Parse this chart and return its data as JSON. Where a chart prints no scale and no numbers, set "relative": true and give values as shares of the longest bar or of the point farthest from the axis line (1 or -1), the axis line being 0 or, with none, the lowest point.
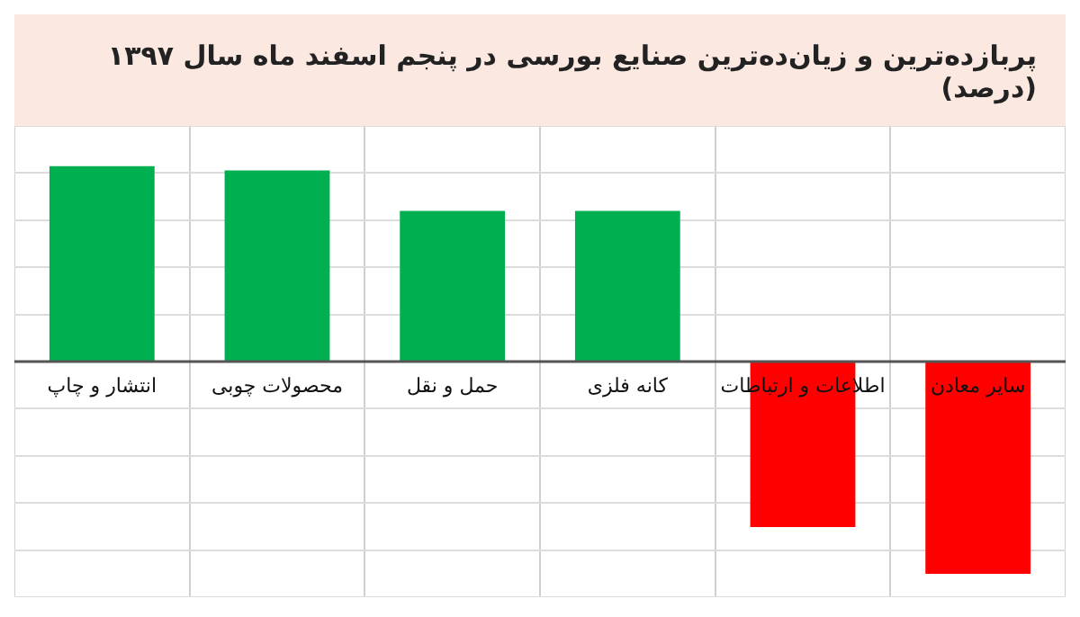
{
  "chart_data": {
    "type": "bar",
    "title": "پربازده‌ترین و زیان‌ده‌ترین صنایع بورسی در پنجم اسفند ماه سال ۱۳۹۷ (درصد)",
    "categories": [
      "انتشار و چاپ",
      "محصولات چوبی",
      "حمل و نقل",
      "کانه فلزی",
      "اطلاعات و ارتباطات",
      "سایر معادن"
    ],
    "values": [
      0.92,
      0.9,
      0.71,
      0.71,
      -0.78,
      -1
    ],
    "colors": [
      "#00b050",
      "#00b050",
      "#00b050",
      "#00b050",
      "#ff0000",
      "#ff0000"
    ],
    "relative": true,
    "grid": true
  }
}
